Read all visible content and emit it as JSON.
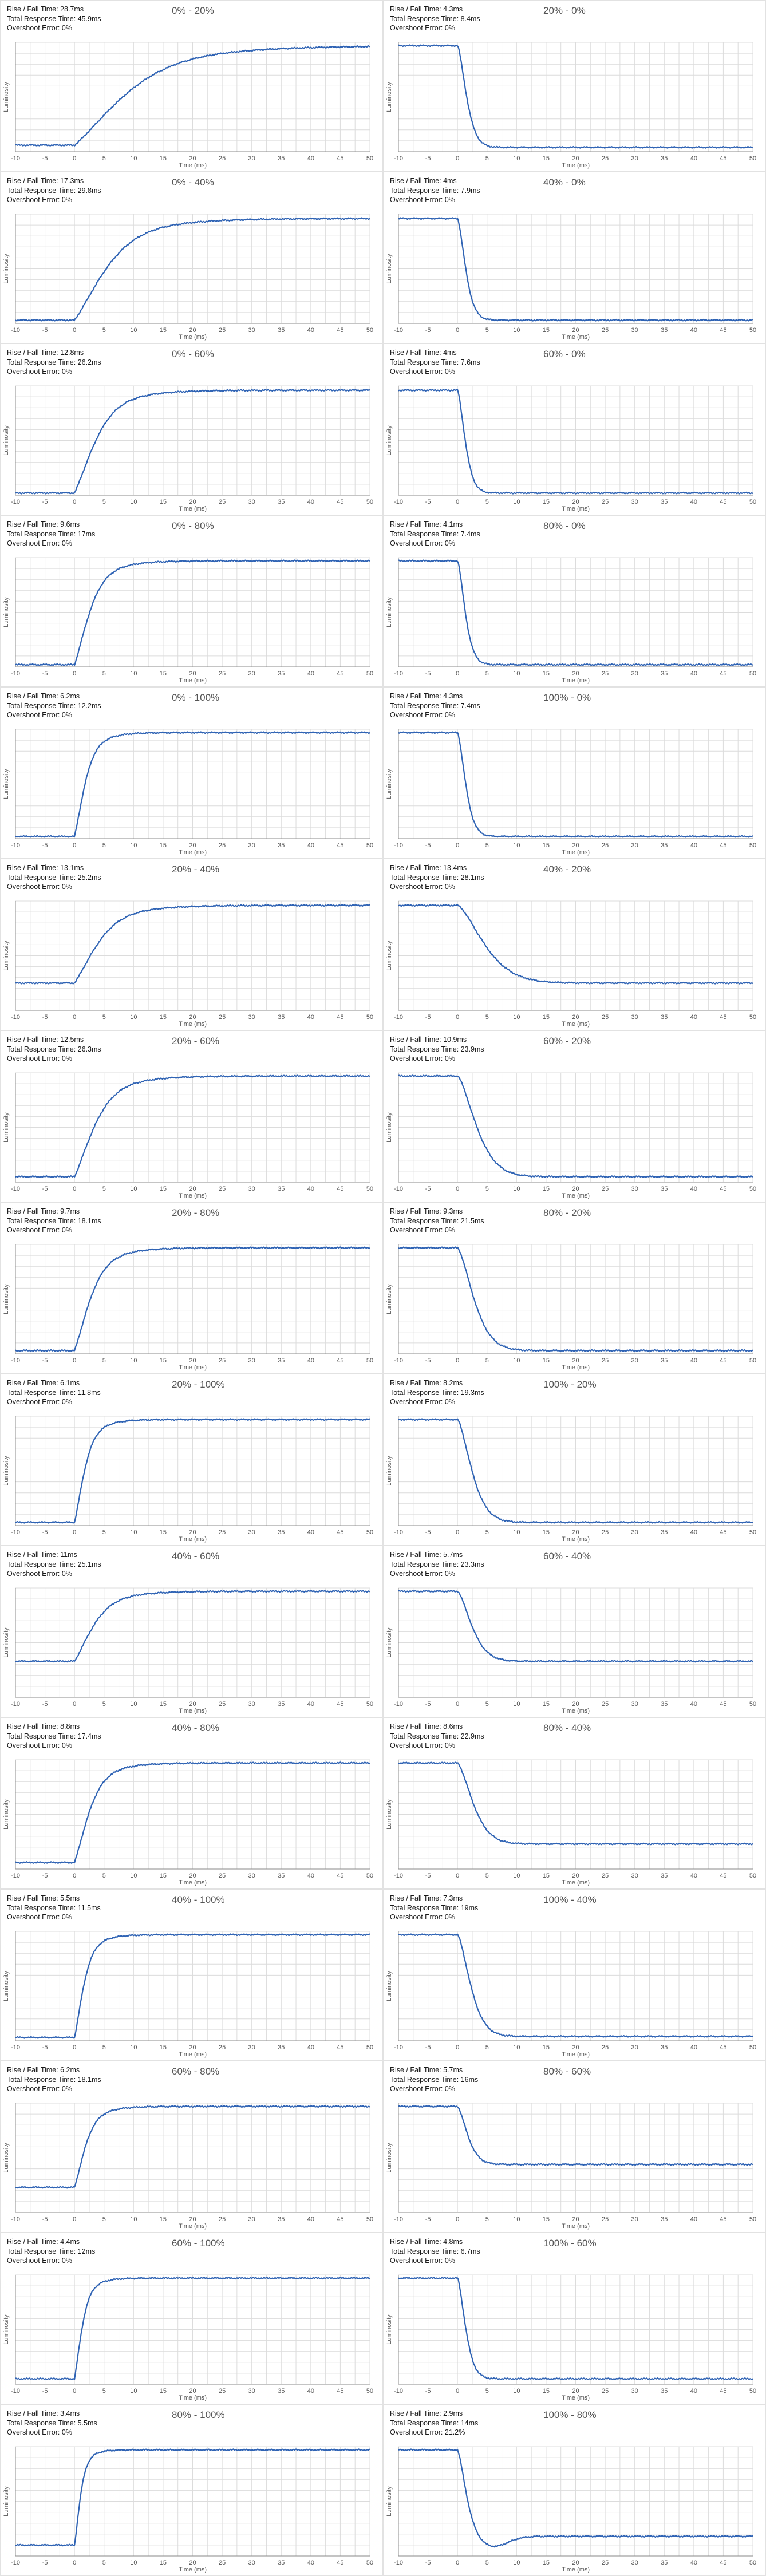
{
  "chart_data": [
    {
      "type": "line",
      "title": "0% - 20%",
      "stats": [
        "Rise / Fall Time: 28.7ms",
        "Total Response Time: 45.9ms",
        "Overshoot Error: 0%"
      ],
      "direction": "rise",
      "t0": 0,
      "tau": 12,
      "level_start": 0.06,
      "level_end": 0.97,
      "overshoot": 0,
      "xlabel": "Time (ms)",
      "ylabel": "Luminosity",
      "xlim": [
        -10,
        50
      ],
      "xticks": [
        -10,
        -5,
        0,
        5,
        10,
        15,
        20,
        25,
        30,
        35,
        40,
        45,
        50
      ]
    },
    {
      "type": "line",
      "title": "20% - 0%",
      "stats": [
        "Rise / Fall Time: 4.3ms",
        "Total Response Time: 8.4ms",
        "Overshoot Error: 0%"
      ],
      "direction": "fall",
      "t0": 0,
      "tau": 2.2,
      "level_start": 0.97,
      "level_end": 0.04,
      "overshoot": 0,
      "xlabel": "Time (ms)",
      "ylabel": "Luminosity",
      "xlim": [
        -10,
        50
      ],
      "xticks": [
        -10,
        -5,
        0,
        5,
        10,
        15,
        20,
        25,
        30,
        35,
        40,
        45,
        50
      ]
    },
    {
      "type": "line",
      "title": "0% - 40%",
      "stats": [
        "Rise / Fall Time: 17.3ms",
        "Total Response Time: 29.8ms",
        "Overshoot Error: 0%"
      ],
      "direction": "rise",
      "t0": 0,
      "tau": 7.5,
      "level_start": 0.03,
      "level_end": 0.96,
      "overshoot": 0,
      "xlabel": "Time (ms)",
      "ylabel": "Luminosity",
      "xlim": [
        -10,
        50
      ],
      "xticks": [
        -10,
        -5,
        0,
        5,
        10,
        15,
        20,
        25,
        30,
        35,
        40,
        45,
        50
      ]
    },
    {
      "type": "line",
      "title": "40% - 0%",
      "stats": [
        "Rise / Fall Time: 4ms",
        "Total Response Time: 7.9ms",
        "Overshoot Error: 0%"
      ],
      "direction": "fall",
      "t0": 0,
      "tau": 2.0,
      "level_start": 0.96,
      "level_end": 0.03,
      "overshoot": 0,
      "xlabel": "Time (ms)",
      "ylabel": "Luminosity",
      "xlim": [
        -10,
        50
      ],
      "xticks": [
        -10,
        -5,
        0,
        5,
        10,
        15,
        20,
        25,
        30,
        35,
        40,
        45,
        50
      ]
    },
    {
      "type": "line",
      "title": "0% - 60%",
      "stats": [
        "Rise / Fall Time: 12.8ms",
        "Total Response Time: 26.2ms",
        "Overshoot Error: 0%"
      ],
      "direction": "rise",
      "t0": 0,
      "tau": 5.0,
      "level_start": 0.02,
      "level_end": 0.96,
      "overshoot": 0,
      "xlabel": "Time (ms)",
      "ylabel": "Luminosity",
      "xlim": [
        -10,
        50
      ],
      "xticks": [
        -10,
        -5,
        0,
        5,
        10,
        15,
        20,
        25,
        30,
        35,
        40,
        45,
        50
      ]
    },
    {
      "type": "line",
      "title": "60% - 0%",
      "stats": [
        "Rise / Fall Time: 4ms",
        "Total Response Time: 7.6ms",
        "Overshoot Error: 0%"
      ],
      "direction": "fall",
      "t0": 0,
      "tau": 1.9,
      "level_start": 0.96,
      "level_end": 0.02,
      "overshoot": 0,
      "xlabel": "Time (ms)",
      "ylabel": "Luminosity",
      "xlim": [
        -10,
        50
      ],
      "xticks": [
        -10,
        -5,
        0,
        5,
        10,
        15,
        20,
        25,
        30,
        35,
        40,
        45,
        50
      ]
    },
    {
      "type": "line",
      "title": "0% - 80%",
      "stats": [
        "Rise / Fall Time: 9.6ms",
        "Total Response Time: 17ms",
        "Overshoot Error: 0%"
      ],
      "direction": "rise",
      "t0": 0,
      "tau": 3.6,
      "level_start": 0.02,
      "level_end": 0.97,
      "overshoot": 0,
      "xlabel": "Time (ms)",
      "ylabel": "Luminosity",
      "xlim": [
        -10,
        50
      ],
      "xticks": [
        -10,
        -5,
        0,
        5,
        10,
        15,
        20,
        25,
        30,
        35,
        40,
        45,
        50
      ]
    },
    {
      "type": "line",
      "title": "80% - 0%",
      "stats": [
        "Rise / Fall Time: 4.1ms",
        "Total Response Time: 7.4ms",
        "Overshoot Error: 0%"
      ],
      "direction": "fall",
      "t0": 0,
      "tau": 1.9,
      "level_start": 0.97,
      "level_end": 0.02,
      "overshoot": 0,
      "xlabel": "Time (ms)",
      "ylabel": "Luminosity",
      "xlim": [
        -10,
        50
      ],
      "xticks": [
        -10,
        -5,
        0,
        5,
        10,
        15,
        20,
        25,
        30,
        35,
        40,
        45,
        50
      ]
    },
    {
      "type": "line",
      "title": "0% - 100%",
      "stats": [
        "Rise / Fall Time: 6.2ms",
        "Total Response Time: 12.2ms",
        "Overshoot Error: 0%"
      ],
      "direction": "rise",
      "t0": 0,
      "tau": 2.5,
      "level_start": 0.02,
      "level_end": 0.97,
      "overshoot": 0,
      "xlabel": "Time (ms)",
      "ylabel": "Luminosity",
      "xlim": [
        -10,
        50
      ],
      "xticks": [
        -10,
        -5,
        0,
        5,
        10,
        15,
        20,
        25,
        30,
        35,
        40,
        45,
        50
      ]
    },
    {
      "type": "line",
      "title": "100% - 0%",
      "stats": [
        "Rise / Fall Time: 4.3ms",
        "Total Response Time: 7.4ms",
        "Overshoot Error: 0%"
      ],
      "direction": "fall",
      "t0": 0,
      "tau": 2.0,
      "level_start": 0.97,
      "level_end": 0.02,
      "overshoot": 0,
      "xlabel": "Time (ms)",
      "ylabel": "Luminosity",
      "xlim": [
        -10,
        50
      ],
      "xticks": [
        -10,
        -5,
        0,
        5,
        10,
        15,
        20,
        25,
        30,
        35,
        40,
        45,
        50
      ]
    },
    {
      "type": "line",
      "title": "20% - 40%",
      "stats": [
        "Rise / Fall Time: 13.1ms",
        "Total Response Time: 25.2ms",
        "Overshoot Error: 0%"
      ],
      "direction": "rise",
      "t0": 0,
      "tau": 5.5,
      "level_start": 0.25,
      "level_end": 0.96,
      "overshoot": 0,
      "xlabel": "Time (ms)",
      "ylabel": "Luminosity",
      "xlim": [
        -10,
        50
      ],
      "xticks": [
        -10,
        -5,
        0,
        5,
        10,
        15,
        20,
        25,
        30,
        35,
        40,
        45,
        50
      ]
    },
    {
      "type": "line",
      "title": "40% - 20%",
      "stats": [
        "Rise / Fall Time: 13.4ms",
        "Total Response Time: 28.1ms",
        "Overshoot Error: 0%"
      ],
      "direction": "fall",
      "t0": 0,
      "tau": 6.5,
      "level_start": 0.96,
      "level_end": 0.25,
      "overshoot": 0,
      "xlabel": "Time (ms)",
      "ylabel": "Luminosity",
      "xlim": [
        -10,
        50
      ],
      "xticks": [
        -10,
        -5,
        0,
        5,
        10,
        15,
        20,
        25,
        30,
        35,
        40,
        45,
        50
      ]
    },
    {
      "type": "line",
      "title": "20% - 60%",
      "stats": [
        "Rise / Fall Time: 12.5ms",
        "Total Response Time: 26.3ms",
        "Overshoot Error: 0%"
      ],
      "direction": "rise",
      "t0": 0,
      "tau": 4.8,
      "level_start": 0.05,
      "level_end": 0.97,
      "overshoot": 0,
      "xlabel": "Time (ms)",
      "ylabel": "Luminosity",
      "xlim": [
        -10,
        50
      ],
      "xticks": [
        -10,
        -5,
        0,
        5,
        10,
        15,
        20,
        25,
        30,
        35,
        40,
        45,
        50
      ]
    },
    {
      "type": "line",
      "title": "60% - 20%",
      "stats": [
        "Rise / Fall Time: 10.9ms",
        "Total Response Time: 23.9ms",
        "Overshoot Error: 0%"
      ],
      "direction": "fall",
      "t0": 0,
      "tau": 4.6,
      "level_start": 0.97,
      "level_end": 0.05,
      "overshoot": 0,
      "xlabel": "Time (ms)",
      "ylabel": "Luminosity",
      "xlim": [
        -10,
        50
      ],
      "xticks": [
        -10,
        -5,
        0,
        5,
        10,
        15,
        20,
        25,
        30,
        35,
        40,
        45,
        50
      ]
    },
    {
      "type": "line",
      "title": "20% - 80%",
      "stats": [
        "Rise / Fall Time: 9.7ms",
        "Total Response Time: 18.1ms",
        "Overshoot Error: 0%"
      ],
      "direction": "rise",
      "t0": 0,
      "tau": 3.8,
      "level_start": 0.03,
      "level_end": 0.97,
      "overshoot": 0,
      "xlabel": "Time (ms)",
      "ylabel": "Luminosity",
      "xlim": [
        -10,
        50
      ],
      "xticks": [
        -10,
        -5,
        0,
        5,
        10,
        15,
        20,
        25,
        30,
        35,
        40,
        45,
        50
      ]
    },
    {
      "type": "line",
      "title": "80% - 20%",
      "stats": [
        "Rise / Fall Time: 9.3ms",
        "Total Response Time: 21.5ms",
        "Overshoot Error: 0%"
      ],
      "direction": "fall",
      "t0": 0,
      "tau": 4.0,
      "level_start": 0.97,
      "level_end": 0.03,
      "overshoot": 0,
      "xlabel": "Time (ms)",
      "ylabel": "Luminosity",
      "xlim": [
        -10,
        50
      ],
      "xticks": [
        -10,
        -5,
        0,
        5,
        10,
        15,
        20,
        25,
        30,
        35,
        40,
        45,
        50
      ]
    },
    {
      "type": "line",
      "title": "20% - 100%",
      "stats": [
        "Rise / Fall Time: 6.1ms",
        "Total Response Time: 11.8ms",
        "Overshoot Error: 0%"
      ],
      "direction": "rise",
      "t0": 0,
      "tau": 2.4,
      "level_start": 0.03,
      "level_end": 0.97,
      "overshoot": 0,
      "xlabel": "Time (ms)",
      "ylabel": "Luminosity",
      "xlim": [
        -10,
        50
      ],
      "xticks": [
        -10,
        -5,
        0,
        5,
        10,
        15,
        20,
        25,
        30,
        35,
        40,
        45,
        50
      ]
    },
    {
      "type": "line",
      "title": "100% - 20%",
      "stats": [
        "Rise / Fall Time: 8.2ms",
        "Total Response Time: 19.3ms",
        "Overshoot Error: 0%"
      ],
      "direction": "fall",
      "t0": 0,
      "tau": 3.5,
      "level_start": 0.97,
      "level_end": 0.03,
      "overshoot": 0,
      "xlabel": "Time (ms)",
      "ylabel": "Luminosity",
      "xlim": [
        -10,
        50
      ],
      "xticks": [
        -10,
        -5,
        0,
        5,
        10,
        15,
        20,
        25,
        30,
        35,
        40,
        45,
        50
      ]
    },
    {
      "type": "line",
      "title": "40% - 60%",
      "stats": [
        "Rise / Fall Time: 11ms",
        "Total Response Time: 25.1ms",
        "Overshoot Error: 0%"
      ],
      "direction": "rise",
      "t0": 0,
      "tau": 4.5,
      "level_start": 0.33,
      "level_end": 0.97,
      "overshoot": 0,
      "xlabel": "Time (ms)",
      "ylabel": "Luminosity",
      "xlim": [
        -10,
        50
      ],
      "xticks": [
        -10,
        -5,
        0,
        5,
        10,
        15,
        20,
        25,
        30,
        35,
        40,
        45,
        50
      ]
    },
    {
      "type": "line",
      "title": "60% - 40%",
      "stats": [
        "Rise / Fall Time: 5.7ms",
        "Total Response Time: 23.3ms",
        "Overshoot Error: 0%"
      ],
      "direction": "fall",
      "t0": 0,
      "tau": 3.5,
      "level_start": 0.97,
      "level_end": 0.33,
      "overshoot": 0,
      "xlabel": "Time (ms)",
      "ylabel": "Luminosity",
      "xlim": [
        -10,
        50
      ],
      "xticks": [
        -10,
        -5,
        0,
        5,
        10,
        15,
        20,
        25,
        30,
        35,
        40,
        45,
        50
      ]
    },
    {
      "type": "line",
      "title": "40% - 80%",
      "stats": [
        "Rise / Fall Time: 8.8ms",
        "Total Response Time: 17.4ms",
        "Overshoot Error: 0%"
      ],
      "direction": "rise",
      "t0": 0,
      "tau": 3.5,
      "level_start": 0.06,
      "level_end": 0.97,
      "overshoot": 0,
      "xlabel": "Time (ms)",
      "ylabel": "Luminosity",
      "xlim": [
        -10,
        50
      ],
      "xticks": [
        -10,
        -5,
        0,
        5,
        10,
        15,
        20,
        25,
        30,
        35,
        40,
        45,
        50
      ]
    },
    {
      "type": "line",
      "title": "80% - 40%",
      "stats": [
        "Rise / Fall Time: 8.6ms",
        "Total Response Time: 22.9ms",
        "Overshoot Error: 0%"
      ],
      "direction": "fall",
      "t0": 0,
      "tau": 3.8,
      "level_start": 0.97,
      "level_end": 0.23,
      "overshoot": 0,
      "xlabel": "Time (ms)",
      "ylabel": "Luminosity",
      "xlim": [
        -10,
        50
      ],
      "xticks": [
        -10,
        -5,
        0,
        5,
        10,
        15,
        20,
        25,
        30,
        35,
        40,
        45,
        50
      ]
    },
    {
      "type": "line",
      "title": "40% - 100%",
      "stats": [
        "Rise / Fall Time: 5.5ms",
        "Total Response Time: 11.5ms",
        "Overshoot Error: 0%"
      ],
      "direction": "rise",
      "t0": 0,
      "tau": 2.2,
      "level_start": 0.03,
      "level_end": 0.97,
      "overshoot": 0,
      "xlabel": "Time (ms)",
      "ylabel": "Luminosity",
      "xlim": [
        -10,
        50
      ],
      "xticks": [
        -10,
        -5,
        0,
        5,
        10,
        15,
        20,
        25,
        30,
        35,
        40,
        45,
        50
      ]
    },
    {
      "type": "line",
      "title": "100% - 40%",
      "stats": [
        "Rise / Fall Time: 7.3ms",
        "Total Response Time: 19ms",
        "Overshoot Error: 0%"
      ],
      "direction": "fall",
      "t0": 0,
      "tau": 3.2,
      "level_start": 0.97,
      "level_end": 0.04,
      "overshoot": 0,
      "xlabel": "Time (ms)",
      "ylabel": "Luminosity",
      "xlim": [
        -10,
        50
      ],
      "xticks": [
        -10,
        -5,
        0,
        5,
        10,
        15,
        20,
        25,
        30,
        35,
        40,
        45,
        50
      ]
    },
    {
      "type": "line",
      "title": "60% - 80%",
      "stats": [
        "Rise / Fall Time: 6.2ms",
        "Total Response Time: 18.1ms",
        "Overshoot Error: 0%"
      ],
      "direction": "rise",
      "t0": 0,
      "tau": 2.6,
      "level_start": 0.23,
      "level_end": 0.97,
      "overshoot": 0,
      "xlabel": "Time (ms)",
      "ylabel": "Luminosity",
      "xlim": [
        -10,
        50
      ],
      "xticks": [
        -10,
        -5,
        0,
        5,
        10,
        15,
        20,
        25,
        30,
        35,
        40,
        45,
        50
      ]
    },
    {
      "type": "line",
      "title": "80% - 60%",
      "stats": [
        "Rise / Fall Time: 5.7ms",
        "Total Response Time: 16ms",
        "Overshoot Error: 0%"
      ],
      "direction": "fall",
      "t0": 0,
      "tau": 2.5,
      "level_start": 0.97,
      "level_end": 0.44,
      "overshoot": 0,
      "xlabel": "Time (ms)",
      "ylabel": "Luminosity",
      "xlim": [
        -10,
        50
      ],
      "xticks": [
        -10,
        -5,
        0,
        5,
        10,
        15,
        20,
        25,
        30,
        35,
        40,
        45,
        50
      ]
    },
    {
      "type": "line",
      "title": "60% - 100%",
      "stats": [
        "Rise / Fall Time: 4.4ms",
        "Total Response Time: 12ms",
        "Overshoot Error: 0%"
      ],
      "direction": "rise",
      "t0": 0,
      "tau": 1.8,
      "level_start": 0.05,
      "level_end": 0.97,
      "overshoot": 0,
      "xlabel": "Time (ms)",
      "ylabel": "Luminosity",
      "xlim": [
        -10,
        50
      ],
      "xticks": [
        -10,
        -5,
        0,
        5,
        10,
        15,
        20,
        25,
        30,
        35,
        40,
        45,
        50
      ]
    },
    {
      "type": "line",
      "title": "100% - 60%",
      "stats": [
        "Rise / Fall Time: 4.8ms",
        "Total Response Time: 6.7ms",
        "Overshoot Error: 0%"
      ],
      "direction": "fall",
      "t0": 0,
      "tau": 2.0,
      "level_start": 0.97,
      "level_end": 0.05,
      "overshoot": 0,
      "xlabel": "Time (ms)",
      "ylabel": "Luminosity",
      "xlim": [
        -10,
        50
      ],
      "xticks": [
        -10,
        -5,
        0,
        5,
        10,
        15,
        20,
        25,
        30,
        35,
        40,
        45,
        50
      ]
    },
    {
      "type": "line",
      "title": "80% - 100%",
      "stats": [
        "Rise / Fall Time: 3.4ms",
        "Total Response Time: 5.5ms",
        "Overshoot Error: 0%"
      ],
      "direction": "rise",
      "t0": 0,
      "tau": 1.4,
      "level_start": 0.1,
      "level_end": 0.97,
      "overshoot": 0,
      "xlabel": "Time (ms)",
      "ylabel": "Luminosity",
      "xlim": [
        -10,
        50
      ],
      "xticks": [
        -10,
        -5,
        0,
        5,
        10,
        15,
        20,
        25,
        30,
        35,
        40,
        45,
        50
      ]
    },
    {
      "type": "line",
      "title": "100% - 80%",
      "stats": [
        "Rise / Fall Time: 2.9ms",
        "Total Response Time: 14ms",
        "Overshoot Error: 21.2%"
      ],
      "direction": "fall",
      "t0": 0,
      "tau": 2.2,
      "level_start": 0.97,
      "level_end": 0.18,
      "overshoot": 0.2,
      "xlabel": "Time (ms)",
      "ylabel": "Luminosity",
      "xlim": [
        -10,
        50
      ],
      "xticks": [
        -10,
        -5,
        0,
        5,
        10,
        15,
        20,
        25,
        30,
        35,
        40,
        45,
        50
      ]
    }
  ],
  "colors": {
    "line": "#2f63b4",
    "grid": "#dcdcdc",
    "axis": "#8a8a8a",
    "frame": "#e2e2e2",
    "text": "#1a1a1a",
    "title": "#555555"
  }
}
